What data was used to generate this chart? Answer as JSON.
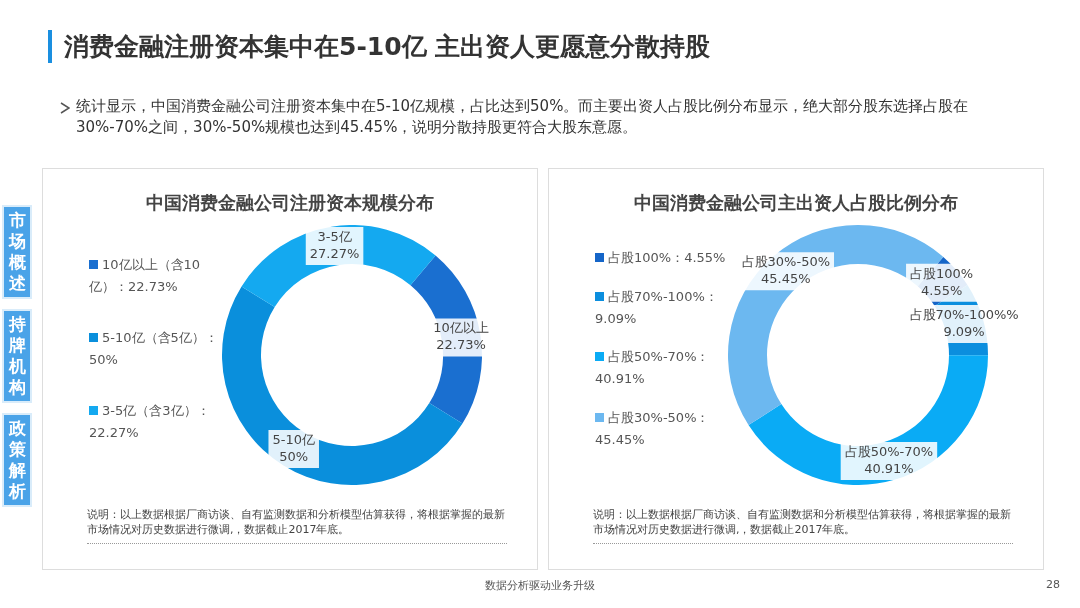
{
  "chart_data": [
    {
      "type": "other",
      "title": "消费金融注册资本集中在5-10亿 主出资人更愿意分散持股",
      "subtitle": "统计显示，中国消费金融公司注册资本集中在5-10亿规模，占比达到50%。而主要出资人占股比例分布显示，绝大部分股东选择占股在30%-70%之间，30%-50%规模也达到45.45%，说明分散持股更符合大股东意愿。",
      "annotations": [
        "市场概述",
        "持牌机构",
        "政策解析",
        "数据分析驱动业务升级",
        "28"
      ]
    },
    {
      "type": "donut",
      "title": "中国消费金融公司注册资本规模分布",
      "categories": [
        "10亿以上（含10亿）：22.73%",
        "5-10亿（含5亿）：50%",
        "3-5亿（含3亿）：22.27%"
      ],
      "values": [
        22.73,
        50,
        27.27
      ],
      "colors": [
        "#1a6fd0",
        "#0a8fdc",
        "#14a9f0"
      ],
      "value_labels": [
        "10亿以上 22.73%",
        "5-10亿 50%",
        "3-5亿 27.27%"
      ],
      "legend": "left",
      "annotations": [
        "说明：以上数据根据厂商访谈、自有监测数据和分析模型估算获得，将根据掌握的最新市场情况对历史数据进行微调,，数据截止2017年底。"
      ]
    },
    {
      "type": "donut",
      "title": "中国消费金融公司主出资人占股比例分布",
      "categories": [
        "占股100%：4.55%",
        "占股70%-100%：9.09%",
        "占股50%-70%：40.91%",
        "占股30%-50%：45.45%"
      ],
      "values": [
        4.55,
        9.09,
        40.91,
        45.45
      ],
      "colors": [
        "#1565c8",
        "#0b8ede",
        "#0aabf5",
        "#6cb8f0"
      ],
      "value_labels": [
        "占股100% 4.55%",
        "占股70%-100%% 9.09%",
        "占股50%-70% 40.91%",
        "占股30%-50% 45.45%"
      ],
      "legend": "left",
      "annotations": [
        "说明：以上数据根据厂商访谈、自有监测数据和分析模型估算获得，将根据掌握的最新市场情况对历史数据进行微调,，数据截止2017年底。"
      ]
    }
  ]
}
